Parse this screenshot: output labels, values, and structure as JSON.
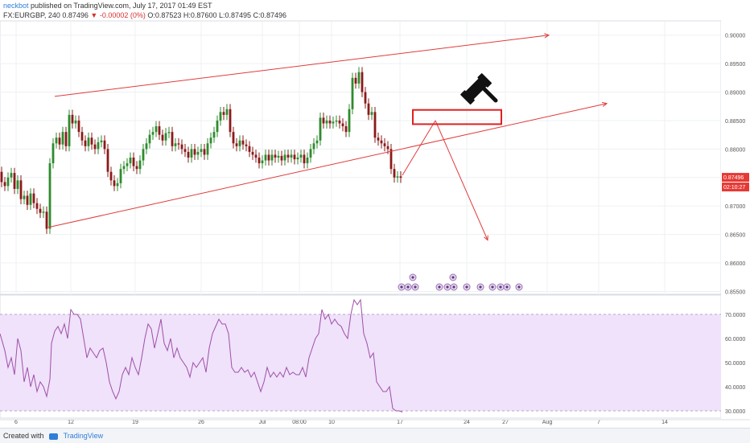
{
  "header": {
    "author": "neckbot",
    "published": "published on TradingView.com, July 17, 2017 01:49 EST",
    "symbol_line": "FX:EURGBP, 240  0.87496",
    "change": "▼ -0.00002 (0%)",
    "ohlc": "O:0.87523 H:0.87600 L:0.87495 C:0.87496"
  },
  "footer": {
    "created_with": "Created with",
    "brand": "TradingView"
  },
  "colors": {
    "up": "#2e8b2e",
    "down": "#8b1a1a",
    "drawing": "#e03b3b",
    "rsi_line": "#a04ea8",
    "rsi_fill": "#efe2fa",
    "grid": "#eef0f3"
  },
  "chart_data": [
    {
      "type": "candlestick",
      "title": "FX:EURGBP, 240",
      "ylim": [
        0.8545,
        0.9025
      ],
      "y_ticks": [
        "0.90000",
        "0.89500",
        "0.89000",
        "0.88500",
        "0.88000",
        "0.87500",
        "0.87000",
        "0.86500",
        "0.86000",
        "0.85500"
      ],
      "x_ticks": [
        "6",
        "12",
        "19",
        "26",
        "Jul",
        "08:00",
        "10",
        "17",
        "24",
        "27",
        "Aug",
        "7",
        "14"
      ],
      "last_price_label": "0.87496",
      "countdown_label": "02:10:27",
      "close_path": [
        [
          0,
          0.876
        ],
        [
          4,
          0.8742
        ],
        [
          8,
          0.8735
        ],
        [
          12,
          0.875
        ],
        [
          16,
          0.8758
        ],
        [
          20,
          0.873
        ],
        [
          24,
          0.8745
        ],
        [
          28,
          0.8712
        ],
        [
          32,
          0.8718
        ],
        [
          36,
          0.8702
        ],
        [
          40,
          0.8722
        ],
        [
          44,
          0.8705
        ],
        [
          48,
          0.8695
        ],
        [
          52,
          0.8688
        ],
        [
          56,
          0.869
        ],
        [
          60,
          0.866
        ],
        [
          64,
          0.8775
        ],
        [
          68,
          0.881
        ],
        [
          72,
          0.882
        ],
        [
          76,
          0.8808
        ],
        [
          80,
          0.883
        ],
        [
          84,
          0.8805
        ],
        [
          88,
          0.886
        ],
        [
          92,
          0.8845
        ],
        [
          96,
          0.885
        ],
        [
          100,
          0.883
        ],
        [
          104,
          0.8815
        ],
        [
          108,
          0.8805
        ],
        [
          112,
          0.882
        ],
        [
          116,
          0.8808
        ],
        [
          120,
          0.88
        ],
        [
          124,
          0.8812
        ],
        [
          128,
          0.8815
        ],
        [
          132,
          0.88
        ],
        [
          136,
          0.876
        ],
        [
          140,
          0.8745
        ],
        [
          144,
          0.8735
        ],
        [
          148,
          0.874
        ],
        [
          152,
          0.8765
        ],
        [
          156,
          0.877
        ],
        [
          160,
          0.8775
        ],
        [
          164,
          0.8785
        ],
        [
          168,
          0.877
        ],
        [
          172,
          0.8765
        ],
        [
          176,
          0.878
        ],
        [
          180,
          0.88
        ],
        [
          184,
          0.881
        ],
        [
          188,
          0.8825
        ],
        [
          192,
          0.883
        ],
        [
          196,
          0.884
        ],
        [
          200,
          0.8825
        ],
        [
          204,
          0.8815
        ],
        [
          208,
          0.8828
        ],
        [
          212,
          0.883
        ],
        [
          216,
          0.8805
        ],
        [
          220,
          0.881
        ],
        [
          224,
          0.8808
        ],
        [
          228,
          0.88
        ],
        [
          232,
          0.8795
        ],
        [
          236,
          0.8785
        ],
        [
          240,
          0.88
        ],
        [
          244,
          0.879
        ],
        [
          248,
          0.8795
        ],
        [
          252,
          0.88
        ],
        [
          256,
          0.879
        ],
        [
          260,
          0.881
        ],
        [
          264,
          0.882
        ],
        [
          268,
          0.883
        ],
        [
          272,
          0.885
        ],
        [
          276,
          0.8865
        ],
        [
          280,
          0.886
        ],
        [
          284,
          0.887
        ],
        [
          288,
          0.883
        ],
        [
          292,
          0.881
        ],
        [
          296,
          0.8805
        ],
        [
          300,
          0.8815
        ],
        [
          304,
          0.8808
        ],
        [
          308,
          0.8805
        ],
        [
          312,
          0.8795
        ],
        [
          316,
          0.879
        ],
        [
          320,
          0.8785
        ],
        [
          324,
          0.8775
        ],
        [
          328,
          0.878
        ],
        [
          332,
          0.879
        ],
        [
          336,
          0.878
        ],
        [
          340,
          0.879
        ],
        [
          344,
          0.8785
        ],
        [
          348,
          0.8788
        ],
        [
          352,
          0.878
        ],
        [
          356,
          0.879
        ],
        [
          360,
          0.8785
        ],
        [
          364,
          0.879
        ],
        [
          368,
          0.8782
        ],
        [
          372,
          0.8785
        ],
        [
          376,
          0.879
        ],
        [
          380,
          0.8775
        ],
        [
          384,
          0.8785
        ],
        [
          388,
          0.88
        ],
        [
          392,
          0.881
        ],
        [
          396,
          0.8815
        ],
        [
          400,
          0.8855
        ],
        [
          404,
          0.8845
        ],
        [
          408,
          0.885
        ],
        [
          412,
          0.8845
        ],
        [
          416,
          0.8848
        ],
        [
          420,
          0.885
        ],
        [
          424,
          0.8845
        ],
        [
          428,
          0.884
        ],
        [
          432,
          0.883
        ],
        [
          436,
          0.887
        ],
        [
          440,
          0.8925
        ],
        [
          444,
          0.8915
        ],
        [
          448,
          0.8935
        ],
        [
          452,
          0.89
        ],
        [
          456,
          0.888
        ],
        [
          460,
          0.886
        ],
        [
          464,
          0.8865
        ],
        [
          468,
          0.882
        ],
        [
          472,
          0.8815
        ],
        [
          476,
          0.881
        ],
        [
          480,
          0.8805
        ],
        [
          484,
          0.88
        ],
        [
          488,
          0.8765
        ],
        [
          492,
          0.875
        ],
        [
          496,
          0.8752
        ],
        [
          500,
          0.87496
        ]
      ],
      "drawings": {
        "channel_upper": [
          [
            68,
            0.88925
          ],
          [
            682,
            0.9
          ]
        ],
        "channel_lower": [
          [
            60,
            0.86625
          ],
          [
            754,
            0.888
          ]
        ],
        "forecast_up": [
          [
            500,
            0.8754
          ],
          [
            541,
            0.885
          ]
        ],
        "forecast_down": [
          [
            541,
            0.885
          ],
          [
            606,
            0.864
          ]
        ],
        "resistance_box": {
          "x": [
            513,
            623
          ],
          "y": [
            0.88437,
            0.88687
          ]
        }
      },
      "events": [
        {
          "x": 513,
          "row": "upper",
          "glyph": "◉"
        },
        {
          "x": 563,
          "row": "upper",
          "glyph": "◉"
        },
        {
          "x": 499,
          "row": "lower",
          "glyph": "◉"
        },
        {
          "x": 507,
          "row": "lower",
          "glyph": "◉"
        },
        {
          "x": 516,
          "row": "lower",
          "glyph": "◉"
        },
        {
          "x": 546,
          "row": "lower",
          "glyph": "◉"
        },
        {
          "x": 556,
          "row": "lower",
          "glyph": "◉"
        },
        {
          "x": 564,
          "row": "lower",
          "glyph": "◉"
        },
        {
          "x": 580,
          "row": "lower",
          "glyph": "◉"
        },
        {
          "x": 597,
          "row": "lower",
          "glyph": "◉"
        },
        {
          "x": 612,
          "row": "lower",
          "glyph": "◉"
        },
        {
          "x": 622,
          "row": "lower",
          "glyph": "◉"
        },
        {
          "x": 630,
          "row": "lower",
          "glyph": "◉"
        },
        {
          "x": 645,
          "row": "lower",
          "glyph": "◉"
        }
      ]
    },
    {
      "type": "line",
      "indicator": "RSI",
      "ylim": [
        27,
        78
      ],
      "y_ticks": [
        "70.0000",
        "60.0000",
        "50.0000",
        "40.0000",
        "30.0000"
      ],
      "band": [
        30,
        70
      ],
      "values": [
        [
          0,
          62
        ],
        [
          6,
          55
        ],
        [
          10,
          48
        ],
        [
          14,
          52
        ],
        [
          18,
          45
        ],
        [
          22,
          60
        ],
        [
          26,
          55
        ],
        [
          30,
          42
        ],
        [
          34,
          48
        ],
        [
          38,
          40
        ],
        [
          42,
          45
        ],
        [
          46,
          38
        ],
        [
          50,
          42
        ],
        [
          54,
          40
        ],
        [
          58,
          36
        ],
        [
          62,
          43
        ],
        [
          64,
          58
        ],
        [
          68,
          63
        ],
        [
          72,
          65
        ],
        [
          76,
          62
        ],
        [
          80,
          66
        ],
        [
          84,
          60
        ],
        [
          88,
          72
        ],
        [
          92,
          70
        ],
        [
          96,
          70
        ],
        [
          100,
          68
        ],
        [
          104,
          60
        ],
        [
          108,
          52
        ],
        [
          112,
          56
        ],
        [
          116,
          54
        ],
        [
          120,
          52
        ],
        [
          124,
          55
        ],
        [
          128,
          56
        ],
        [
          132,
          50
        ],
        [
          136,
          42
        ],
        [
          140,
          38
        ],
        [
          144,
          35
        ],
        [
          148,
          38
        ],
        [
          152,
          45
        ],
        [
          156,
          48
        ],
        [
          160,
          45
        ],
        [
          164,
          52
        ],
        [
          168,
          48
        ],
        [
          172,
          45
        ],
        [
          176,
          52
        ],
        [
          180,
          60
        ],
        [
          184,
          66
        ],
        [
          188,
          64
        ],
        [
          192,
          56
        ],
        [
          196,
          62
        ],
        [
          200,
          68
        ],
        [
          204,
          58
        ],
        [
          208,
          55
        ],
        [
          212,
          60
        ],
        [
          216,
          52
        ],
        [
          220,
          56
        ],
        [
          224,
          52
        ],
        [
          228,
          50
        ],
        [
          232,
          48
        ],
        [
          236,
          44
        ],
        [
          240,
          50
        ],
        [
          244,
          48
        ],
        [
          248,
          50
        ],
        [
          252,
          52
        ],
        [
          256,
          46
        ],
        [
          260,
          56
        ],
        [
          264,
          62
        ],
        [
          268,
          65
        ],
        [
          272,
          68
        ],
        [
          276,
          66
        ],
        [
          280,
          66
        ],
        [
          284,
          62
        ],
        [
          288,
          48
        ],
        [
          292,
          46
        ],
        [
          296,
          46
        ],
        [
          300,
          48
        ],
        [
          304,
          46
        ],
        [
          308,
          47
        ],
        [
          312,
          44
        ],
        [
          316,
          46
        ],
        [
          320,
          42
        ],
        [
          324,
          38
        ],
        [
          328,
          42
        ],
        [
          332,
          48
        ],
        [
          336,
          44
        ],
        [
          340,
          46
        ],
        [
          344,
          44
        ],
        [
          348,
          46
        ],
        [
          352,
          44
        ],
        [
          356,
          48
        ],
        [
          360,
          45
        ],
        [
          364,
          46
        ],
        [
          368,
          45
        ],
        [
          372,
          45
        ],
        [
          376,
          48
        ],
        [
          380,
          44
        ],
        [
          384,
          52
        ],
        [
          388,
          56
        ],
        [
          392,
          60
        ],
        [
          396,
          62
        ],
        [
          400,
          72
        ],
        [
          404,
          68
        ],
        [
          408,
          70
        ],
        [
          412,
          66
        ],
        [
          416,
          68
        ],
        [
          420,
          66
        ],
        [
          424,
          65
        ],
        [
          428,
          62
        ],
        [
          432,
          60
        ],
        [
          436,
          70
        ],
        [
          440,
          76
        ],
        [
          444,
          74
        ],
        [
          448,
          76
        ],
        [
          452,
          62
        ],
        [
          456,
          58
        ],
        [
          460,
          52
        ],
        [
          464,
          54
        ],
        [
          468,
          42
        ],
        [
          472,
          40
        ],
        [
          476,
          38
        ],
        [
          480,
          38
        ],
        [
          484,
          40
        ],
        [
          488,
          31
        ],
        [
          492,
          30
        ],
        [
          496,
          30
        ],
        [
          500,
          29.5
        ]
      ]
    }
  ]
}
